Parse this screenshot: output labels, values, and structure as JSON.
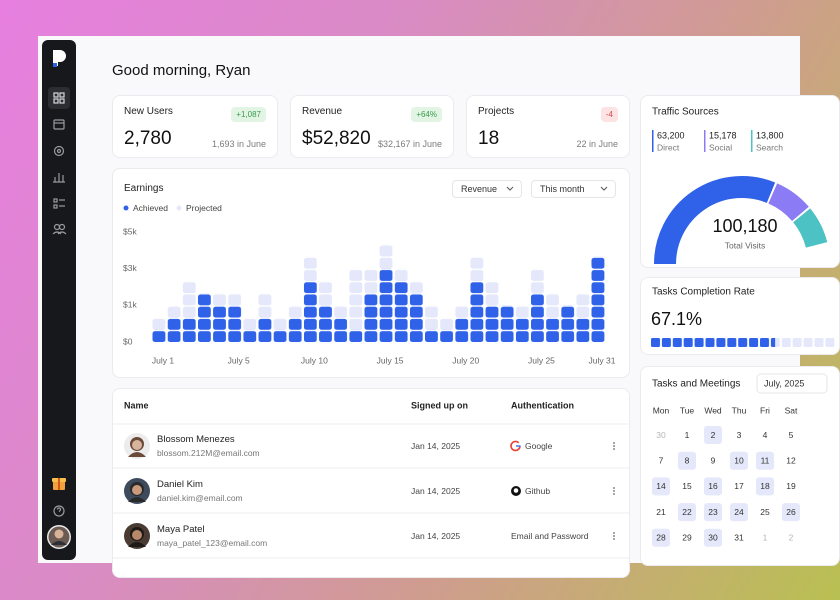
{
  "greeting": "Good morning, Ryan",
  "stats": [
    {
      "title": "New Users",
      "value": "2,780",
      "change": "+1,087",
      "trend": "up",
      "previous": "1,693 in June"
    },
    {
      "title": "Revenue",
      "value": "$52,820",
      "change": "+64%",
      "trend": "up",
      "previous": "$32,167 in June"
    },
    {
      "title": "Projects",
      "value": "18",
      "change": "-4",
      "trend": "down",
      "previous": "22 in June"
    }
  ],
  "earnings_filters": [
    "Revenue",
    "This month"
  ],
  "chart_data": [
    {
      "type": "bar",
      "stacked": true,
      "title": "Earnings",
      "categories": [
        "July 1",
        null,
        null,
        null,
        null,
        "July 5",
        null,
        null,
        null,
        null,
        "July 10",
        null,
        null,
        null,
        null,
        "July 15",
        null,
        null,
        null,
        null,
        "July 20",
        null,
        null,
        null,
        null,
        "July 25",
        null,
        null,
        null,
        "July 31"
      ],
      "series": [
        {
          "name": "Achieved",
          "color": "#2f62e8",
          "values": [
            333,
            667,
            667,
            1667,
            1000,
            1000,
            333,
            667,
            333,
            667,
            2333,
            1000,
            667,
            333,
            1667,
            3000,
            2333,
            1667,
            333,
            333,
            667,
            2333,
            1000,
            1000,
            667,
            1667,
            667,
            1000,
            667,
            3667
          ]
        },
        {
          "name": "Projected",
          "color": "#e4e8fa",
          "values": [
            334,
            333,
            1666,
            0,
            667,
            667,
            334,
            1000,
            334,
            333,
            1334,
            1333,
            333,
            2667,
            1333,
            1333,
            667,
            666,
            667,
            334,
            333,
            1334,
            1333,
            0,
            333,
            1333,
            1000,
            0,
            1000,
            0
          ]
        }
      ],
      "ylim": [
        0,
        5000
      ],
      "yticks": [
        {
          "value": 0,
          "label": "$0"
        },
        {
          "value": 1000,
          "label": "$1k"
        },
        {
          "value": 3000,
          "label": "$3k"
        },
        {
          "value": 5000,
          "label": "$5k"
        }
      ]
    },
    {
      "type": "gauge",
      "title": "Traffic Sources",
      "categories": [
        "Direct",
        "Social",
        "Search"
      ],
      "values": [
        63200,
        15178,
        13800
      ],
      "value_labels": [
        "63,200",
        "15,178",
        "13,800"
      ],
      "colors": [
        "#2f62e8",
        "#8b7cf6",
        "#4cc2c4"
      ],
      "total": {
        "value": 100180,
        "label": "100,180"
      },
      "total_name": "Total Visits"
    },
    {
      "type": "progress",
      "title": "Tasks Completion Rate",
      "value": 67.1,
      "value_label": "67.1%",
      "xlim": [
        0,
        100
      ],
      "color": "#2f62e8",
      "track_color": "#e4e8fa"
    }
  ],
  "users_table": {
    "columns": [
      "Name",
      "Signed up on",
      "Authentication"
    ],
    "rows": [
      {
        "name": "Blossom Menezes",
        "email": "blossom.212M@email.com",
        "signed_up": "Jan 14, 2025",
        "auth": "Google"
      },
      {
        "name": "Daniel Kim",
        "email": "daniel.kim@email.com",
        "signed_up": "Jan 14, 2025",
        "auth": "Github"
      },
      {
        "name": "Maya Patel",
        "email": "maya_patel_123@email.com",
        "signed_up": "Jan 14, 2025",
        "auth": "Email and Password"
      }
    ]
  },
  "calendar": {
    "title": "Tasks and Meetings",
    "month": "July, 2025",
    "weekdays": [
      "Mon",
      "Tue",
      "Wed",
      "Thu",
      "Fri",
      "Sat"
    ],
    "days": [
      {
        "label": "30",
        "muted": true
      },
      {
        "label": "1"
      },
      {
        "label": "2",
        "highlight": true
      },
      {
        "label": "3"
      },
      {
        "label": "4"
      },
      {
        "label": "5"
      },
      {
        "label": "7"
      },
      {
        "label": "8",
        "highlight": true
      },
      {
        "label": "9"
      },
      {
        "label": "10",
        "highlight": true
      },
      {
        "label": "11",
        "highlight": true
      },
      {
        "label": "12"
      },
      {
        "label": "14",
        "highlight": true
      },
      {
        "label": "15"
      },
      {
        "label": "16",
        "highlight": true
      },
      {
        "label": "17"
      },
      {
        "label": "18",
        "highlight": true
      },
      {
        "label": "19"
      },
      {
        "label": "21"
      },
      {
        "label": "22",
        "highlight": true
      },
      {
        "label": "23",
        "highlight": true
      },
      {
        "label": "24",
        "highlight": true
      },
      {
        "label": "25"
      },
      {
        "label": "26",
        "highlight": true
      },
      {
        "label": "28",
        "highlight": true
      },
      {
        "label": "29"
      },
      {
        "label": "30",
        "highlight": true
      },
      {
        "label": "31"
      },
      {
        "label": "1",
        "muted": true
      },
      {
        "label": "2",
        "muted": true
      }
    ]
  }
}
